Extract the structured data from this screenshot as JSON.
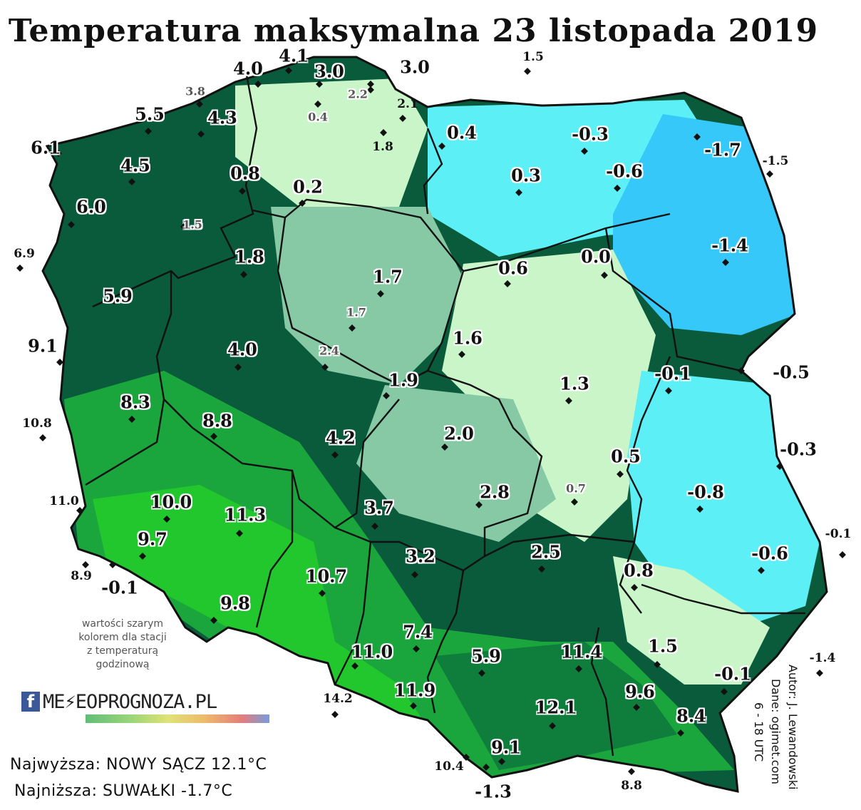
{
  "title": "Temperatura maksymalna 23 listopada 2019",
  "note_lines": [
    "wartości szarym",
    "kolorem dla stacji",
    "z temperaturą",
    "godzinową"
  ],
  "credit_author": "Autor: J. Lewandowski",
  "credit_data": "Dane: ogimet.com",
  "credit_hours": "6 - 18 UTC",
  "logo": {
    "fb": "f",
    "brand": "ME⚡EOPROGNOZA.PL"
  },
  "stats": {
    "highest": "Najwyższa: NOWY SĄCZ 12.1°C",
    "lowest": "Najniższa: SUWAŁKI   -1.7°C"
  },
  "colors": {
    "dark_green": "#0a5a3c",
    "green": "#1aa63c",
    "bright_green": "#22c72e",
    "pale_green": "#c9f5c9",
    "sage": "#86c9a4",
    "cyan": "#5cf0f6",
    "light_blue": "#35c8f8"
  },
  "stations": [
    {
      "v": "4.0",
      "t": "main"
    },
    {
      "v": "4.1",
      "t": "main"
    },
    {
      "v": "3.0",
      "t": "main"
    },
    {
      "v": "3.0",
      "t": "main"
    },
    {
      "v": "1.5",
      "t": "out"
    },
    {
      "v": "3.8",
      "t": "grey"
    },
    {
      "v": "2.2",
      "t": "grey"
    },
    {
      "v": "5.5",
      "t": "main"
    },
    {
      "v": "4.3",
      "t": "main"
    },
    {
      "v": "0.4",
      "t": "grey"
    },
    {
      "v": "2.1",
      "t": "out"
    },
    {
      "v": "1.8",
      "t": "out"
    },
    {
      "v": "0.4",
      "t": "main"
    },
    {
      "v": "-0.3",
      "t": "main"
    },
    {
      "v": "-1.7",
      "t": "main"
    },
    {
      "v": "-1.5",
      "t": "out"
    },
    {
      "v": "6.1",
      "t": "main"
    },
    {
      "v": "4.5",
      "t": "main"
    },
    {
      "v": "0.8",
      "t": "main"
    },
    {
      "v": "0.2",
      "t": "main"
    },
    {
      "v": "0.3",
      "t": "main"
    },
    {
      "v": "-0.6",
      "t": "main"
    },
    {
      "v": "6.0",
      "t": "main"
    },
    {
      "v": "1.5",
      "t": "grey"
    },
    {
      "v": "-1.4",
      "t": "main"
    },
    {
      "v": "6.9",
      "t": "out"
    },
    {
      "v": "1.8",
      "t": "main"
    },
    {
      "v": "0.6",
      "t": "main"
    },
    {
      "v": "0.0",
      "t": "main"
    },
    {
      "v": "1.7",
      "t": "main"
    },
    {
      "v": "5.9",
      "t": "main"
    },
    {
      "v": "1.7",
      "t": "grey"
    },
    {
      "v": "9.1",
      "t": "main"
    },
    {
      "v": "1.6",
      "t": "main"
    },
    {
      "v": "4.0",
      "t": "main"
    },
    {
      "v": "2.4",
      "t": "grey"
    },
    {
      "v": "-0.5",
      "t": "main"
    },
    {
      "v": "-0.1",
      "t": "main"
    },
    {
      "v": "1.9",
      "t": "main"
    },
    {
      "v": "1.3",
      "t": "main"
    },
    {
      "v": "8.3",
      "t": "main"
    },
    {
      "v": "10.8",
      "t": "out"
    },
    {
      "v": "8.8",
      "t": "main"
    },
    {
      "v": "2.0",
      "t": "main"
    },
    {
      "v": "4.2",
      "t": "main"
    },
    {
      "v": "-0.3",
      "t": "main"
    },
    {
      "v": "0.5",
      "t": "main"
    },
    {
      "v": "0.7",
      "t": "grey"
    },
    {
      "v": "2.8",
      "t": "main"
    },
    {
      "v": "-0.8",
      "t": "main"
    },
    {
      "v": "11.0",
      "t": "out"
    },
    {
      "v": "10.0",
      "t": "main"
    },
    {
      "v": "11.3",
      "t": "main"
    },
    {
      "v": "3.7",
      "t": "main"
    },
    {
      "v": "9.7",
      "t": "main"
    },
    {
      "v": "-0.1",
      "t": "out"
    },
    {
      "v": "2.5",
      "t": "main"
    },
    {
      "v": "-0.6",
      "t": "main"
    },
    {
      "v": "3.2",
      "t": "main"
    },
    {
      "v": "8.9",
      "t": "out"
    },
    {
      "v": "-0.1",
      "t": "main"
    },
    {
      "v": "0.8",
      "t": "main"
    },
    {
      "v": "10.7",
      "t": "main"
    },
    {
      "v": "9.8",
      "t": "main"
    },
    {
      "v": "7.4",
      "t": "main"
    },
    {
      "v": "11.0",
      "t": "main"
    },
    {
      "v": "5.9",
      "t": "main"
    },
    {
      "v": "11.4",
      "t": "main"
    },
    {
      "v": "1.5",
      "t": "main"
    },
    {
      "v": "-1.4",
      "t": "out"
    },
    {
      "v": "-0.1",
      "t": "main"
    },
    {
      "v": "11.9",
      "t": "main"
    },
    {
      "v": "9.6",
      "t": "main"
    },
    {
      "v": "14.2",
      "t": "out"
    },
    {
      "v": "12.1",
      "t": "main"
    },
    {
      "v": "8.4",
      "t": "main"
    },
    {
      "v": "9.1",
      "t": "main"
    },
    {
      "v": "10.4",
      "t": "out"
    },
    {
      "v": "-1.3",
      "t": "main"
    },
    {
      "v": "8.8",
      "t": "out"
    }
  ]
}
